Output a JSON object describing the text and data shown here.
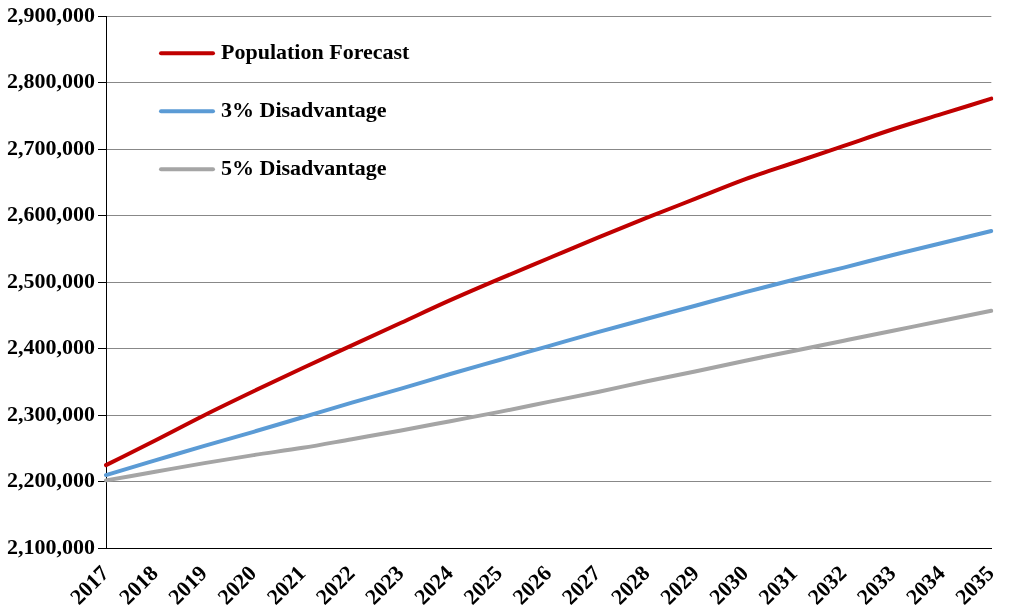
{
  "chart_data": {
    "type": "line",
    "categories": [
      "2017",
      "2018",
      "2019",
      "2020",
      "2021",
      "2022",
      "2023",
      "2024",
      "2025",
      "2026",
      "2027",
      "2028",
      "2029",
      "2030",
      "2031",
      "2032",
      "2033",
      "2034",
      "2035"
    ],
    "series": [
      {
        "name": "Population Forecast",
        "color": "#c00000",
        "values": [
          2225000,
          2262000,
          2300000,
          2336000,
          2371000,
          2405000,
          2439000,
          2473000,
          2505000,
          2536000,
          2567000,
          2597000,
          2626000,
          2655000,
          2680000,
          2705000,
          2730000,
          2753000,
          2776000
        ]
      },
      {
        "name": "3% Disadvantage",
        "color": "#5b9bd5",
        "values": [
          2210000,
          2232000,
          2254000,
          2275000,
          2297000,
          2319000,
          2340000,
          2362000,
          2383000,
          2404000,
          2425000,
          2445000,
          2465000,
          2485000,
          2504000,
          2522000,
          2541000,
          2559000,
          2577000
        ]
      },
      {
        "name": "5% Disadvantage",
        "color": "#a5a5a5",
        "values": [
          2202000,
          2215000,
          2228000,
          2240000,
          2251000,
          2264000,
          2277000,
          2291000,
          2305000,
          2320000,
          2335000,
          2351000,
          2366000,
          2382000,
          2397000,
          2412000,
          2427000,
          2442000,
          2457000
        ]
      }
    ],
    "ylim": [
      2100000,
      2900000
    ],
    "yticks": [
      {
        "value": 2100000,
        "label": "2,100,000"
      },
      {
        "value": 2200000,
        "label": "2,200,000"
      },
      {
        "value": 2300000,
        "label": "2,300,000"
      },
      {
        "value": 2400000,
        "label": "2,400,000"
      },
      {
        "value": 2500000,
        "label": "2,500,000"
      },
      {
        "value": 2600000,
        "label": "2,600,000"
      },
      {
        "value": 2700000,
        "label": "2,700,000"
      },
      {
        "value": 2800000,
        "label": "2,800,000"
      },
      {
        "value": 2900000,
        "label": "2,900,000"
      }
    ],
    "grid": "y",
    "legend": "top left",
    "marker": "none",
    "line_style": "solid"
  }
}
